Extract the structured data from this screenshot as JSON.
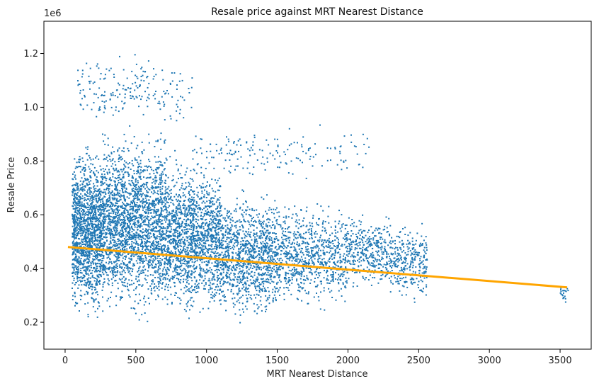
{
  "chart_data": {
    "type": "scatter",
    "title": "Resale price against MRT Nearest Distance",
    "xlabel": "MRT Nearest Distance",
    "ylabel": "Resale Price",
    "y_offset_label": "1e6",
    "xlim": [
      -150,
      3720
    ],
    "ylim": [
      0.1,
      1.32
    ],
    "xticks": [
      0,
      500,
      1000,
      1500,
      2000,
      2500,
      3000,
      3500
    ],
    "yticks": [
      0.2,
      0.4,
      0.6,
      0.8,
      1.0,
      1.2
    ],
    "ytick_labels": [
      "0.2",
      "0.4",
      "0.6",
      "0.8",
      "1.0",
      "1.2"
    ],
    "grid": false,
    "colors": {
      "points": "#1f77b4",
      "trend": "#ffa500"
    },
    "trend_line": {
      "x": [
        20,
        3550
      ],
      "y": [
        0.48,
        0.33
      ]
    },
    "scatter_clusters": [
      {
        "x": [
          50,
          260
        ],
        "y": [
          0.17,
          0.9
        ],
        "n": 1400
      },
      {
        "x": [
          260,
          720
        ],
        "y": [
          0.18,
          0.95
        ],
        "n": 2200
      },
      {
        "x": [
          720,
          1100
        ],
        "y": [
          0.18,
          0.85
        ],
        "n": 1500
      },
      {
        "x": [
          1100,
          1500
        ],
        "y": [
          0.18,
          0.72
        ],
        "n": 1100
      },
      {
        "x": [
          1500,
          2000
        ],
        "y": [
          0.22,
          0.68
        ],
        "n": 800
      },
      {
        "x": [
          2000,
          2300
        ],
        "y": [
          0.3,
          0.62
        ],
        "n": 350
      },
      {
        "x": [
          2300,
          2560
        ],
        "y": [
          0.25,
          0.6
        ],
        "n": 300
      },
      {
        "x": [
          90,
          900
        ],
        "y": [
          0.9,
          1.22
        ],
        "n": 200
      },
      {
        "x": [
          900,
          2150
        ],
        "y": [
          0.7,
          0.95
        ],
        "n": 160
      },
      {
        "x": [
          3500,
          3560
        ],
        "y": [
          0.26,
          0.36
        ],
        "n": 20
      }
    ]
  }
}
